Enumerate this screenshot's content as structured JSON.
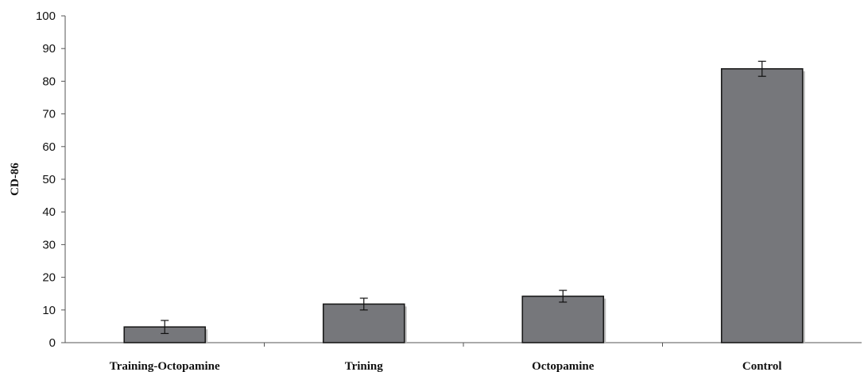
{
  "chart_data": {
    "type": "bar",
    "title": "",
    "xlabel": "",
    "ylabel": "CD-86",
    "categories": [
      "Training-Octopamine",
      "Trining",
      "Octopamine",
      "Control"
    ],
    "values": [
      4.8,
      11.8,
      14.2,
      83.8
    ],
    "error": [
      2.0,
      1.8,
      1.8,
      2.3
    ],
    "ylim": [
      0,
      100
    ],
    "yticks": [
      0,
      10,
      20,
      30,
      40,
      50,
      60,
      70,
      80,
      90,
      100
    ],
    "grid": false,
    "legend": "none",
    "colors": {
      "bar": "#76777b",
      "bar_edge": "#1a1a1a",
      "axis": "#555555"
    }
  }
}
